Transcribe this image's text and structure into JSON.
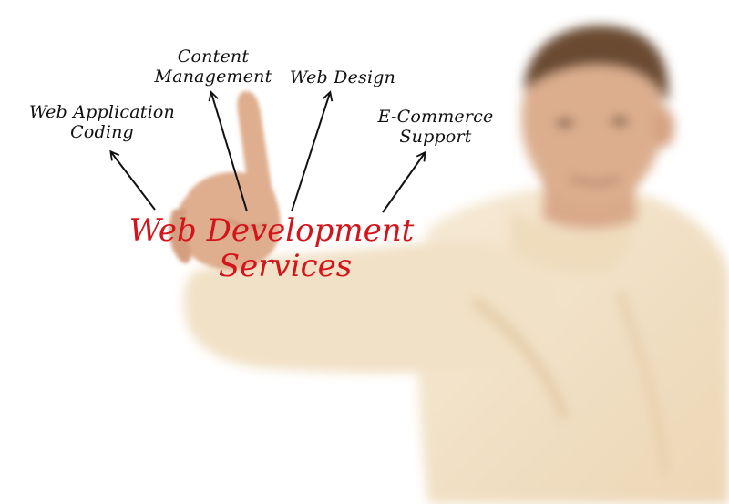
{
  "diagram": {
    "center": {
      "line1": "Web Development",
      "line2": "Services"
    },
    "branches": [
      {
        "lines": [
          "Web Application",
          "Coding"
        ]
      },
      {
        "lines": [
          "Content",
          "Management"
        ]
      },
      {
        "lines": [
          "Web Design"
        ]
      },
      {
        "lines": [
          "E-Commerce",
          "Support"
        ]
      }
    ]
  },
  "colors": {
    "center_text": "#d4141b",
    "branch_text": "#111111",
    "arrow": "#111111",
    "shirt": "#f3e3c8",
    "skin": "#dcae8e",
    "hair": "#6b4b33"
  }
}
